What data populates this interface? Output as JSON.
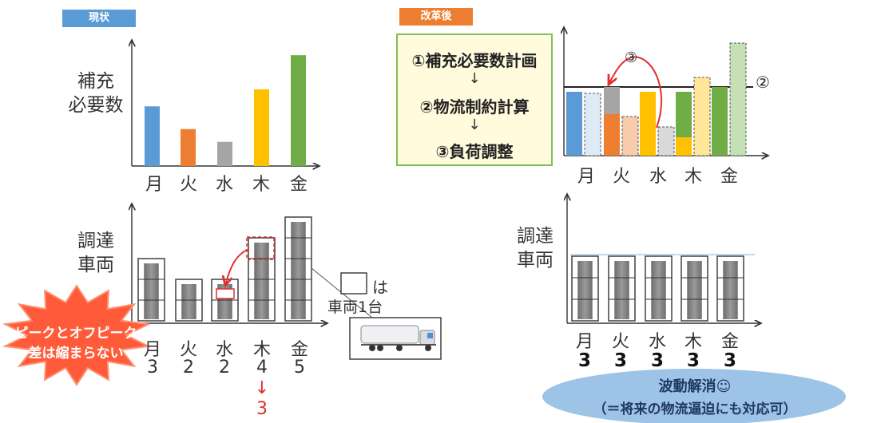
{
  "left": {
    "badge": "現状",
    "top_label": [
      "補充",
      "必要数"
    ],
    "bottom_label": [
      "調達",
      "車両"
    ],
    "days": [
      "月",
      "火",
      "水",
      "木",
      "金"
    ],
    "vehicle_counts": [
      "3",
      "2",
      "2",
      "4",
      "5"
    ],
    "reduced_arrow": "↓",
    "reduced_value": "3",
    "legend_text": "は",
    "legend_subtext": "車両1台",
    "starburst_line1": "ピークとオフピーク",
    "starburst_line2": "差は縮まらない"
  },
  "right": {
    "badge": "改革後",
    "plan_step1": "①補充必要数計画",
    "plan_step2": "②物流制約計算",
    "plan_step3": "③負荷調整",
    "plan_arrow": "↓",
    "marker_2": "②",
    "marker_3": "③",
    "days": [
      "月",
      "火",
      "水",
      "木",
      "金"
    ],
    "bottom_label": [
      "調達",
      "車両"
    ],
    "vehicle_counts": [
      "3",
      "3",
      "3",
      "3",
      "3"
    ],
    "ellipse_line1": "波動解消☺",
    "ellipse_line2": "（＝将来の物流逼迫にも対応可）"
  },
  "colors": {
    "blue": "#5b9bd5",
    "orange": "#ed7d31",
    "gray": "#a5a5a5",
    "yellow": "#ffc000",
    "green": "#70ad47",
    "badge_blue": "#5b9bd5",
    "badge_orange": "#ed7d31",
    "red": "#e03030",
    "ellipse": "#9dc3e6"
  },
  "chart_data": [
    {
      "type": "bar",
      "categories": [
        "月",
        "火",
        "水",
        "木",
        "金"
      ],
      "values": [
        4.2,
        2.6,
        1.7,
        5.4,
        7.8
      ],
      "ylabel": "補充必要数",
      "ylim": [
        0,
        10
      ]
    },
    {
      "type": "bar",
      "categories": [
        "月",
        "火",
        "水",
        "木",
        "金"
      ],
      "values": [
        3,
        2,
        2,
        4,
        5
      ],
      "ylabel": "調達車両",
      "ylim": [
        0,
        6
      ]
    },
    {
      "type": "bar",
      "categories": [
        "月",
        "火",
        "水",
        "木",
        "金"
      ],
      "values": [
        3,
        3,
        3,
        3,
        3
      ],
      "ylabel": "調達車両",
      "ylim": [
        0,
        6
      ]
    }
  ]
}
